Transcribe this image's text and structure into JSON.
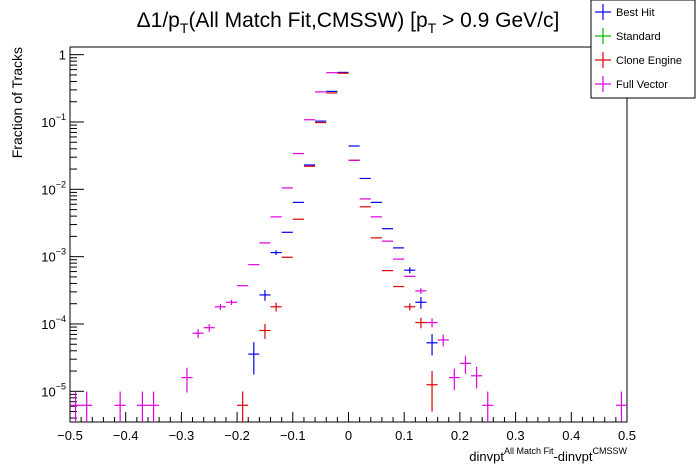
{
  "chart_data": {
    "type": "scatter",
    "title": "Δ1/p_T(All Match Fit,CMSSW) [p_T > 0.9 GeV/c]",
    "title_parts": {
      "a": "Δ1/p",
      "a_sub": "T",
      "b": "(All Match Fit,CMSSW) [p",
      "b_sub": "T",
      "c": " > 0.9 GeV/c]"
    },
    "xlabel": "dinvpt^{All Match Fit}-dinvpt^{CMSSW}",
    "xlabel_parts": {
      "a": "dinvpt",
      "a_sup": "All Match Fit",
      "b": "-dinvpt",
      "b_sup": "CMSSW"
    },
    "ylabel": "Fraction of Tracks",
    "xlim": [
      -0.5,
      0.5
    ],
    "ylim": [
      3.5e-06,
      1.3
    ],
    "yscale": "log",
    "grid": false,
    "legend_position": "top-right",
    "x_ticks": [
      -0.5,
      -0.4,
      -0.3,
      -0.2,
      -0.1,
      0,
      0.1,
      0.2,
      0.3,
      0.4,
      0.5
    ],
    "x_tick_labels": [
      "−0.5",
      "−0.4",
      "−0.3",
      "−0.2",
      "−0.1",
      "0",
      "0.1",
      "0.2",
      "0.3",
      "0.4",
      "0.5"
    ],
    "y_ticks": [
      1e-05,
      0.0001,
      0.001,
      0.01,
      0.1,
      1
    ],
    "y_tick_labels": [
      {
        "base": "10",
        "exp": "−5"
      },
      {
        "base": "10",
        "exp": "−4"
      },
      {
        "base": "10",
        "exp": "−3"
      },
      {
        "base": "10",
        "exp": "−2"
      },
      {
        "base": "10",
        "exp": "−1"
      },
      {
        "base": "1",
        "exp": ""
      }
    ],
    "bin_half_width": 0.01,
    "series": [
      {
        "name": "Best Hit",
        "color": "#0000ee",
        "points": [
          {
            "x": -0.17,
            "y": 3.57e-05,
            "err": 0.5
          },
          {
            "x": -0.15,
            "y": 0.00027,
            "err": 0.18
          },
          {
            "x": -0.13,
            "y": 0.00115,
            "err": 0.08
          },
          {
            "x": -0.11,
            "y": 0.0023
          },
          {
            "x": -0.09,
            "y": 0.0064
          },
          {
            "x": -0.07,
            "y": 0.023
          },
          {
            "x": -0.05,
            "y": 0.103
          },
          {
            "x": -0.03,
            "y": 0.285
          },
          {
            "x": -0.01,
            "y": 0.545
          },
          {
            "x": 0.01,
            "y": 0.044
          },
          {
            "x": 0.03,
            "y": 0.0145
          },
          {
            "x": 0.05,
            "y": 0.0064
          },
          {
            "x": 0.07,
            "y": 0.0026
          },
          {
            "x": 0.09,
            "y": 0.00135
          },
          {
            "x": 0.11,
            "y": 0.00063,
            "err": 0.1
          },
          {
            "x": 0.13,
            "y": 0.00021,
            "err": 0.2
          },
          {
            "x": 0.15,
            "y": 5.25e-05,
            "err": 0.35
          }
        ]
      },
      {
        "name": "Standard",
        "color": "#00bb00",
        "points": []
      },
      {
        "name": "Clone Engine",
        "color": "#dd0000",
        "points": [
          {
            "x": -0.19,
            "y": 6.2e-06,
            "err": 0.6
          },
          {
            "x": -0.15,
            "y": 8e-05,
            "err": 0.25
          },
          {
            "x": -0.13,
            "y": 0.00018,
            "err": 0.15
          },
          {
            "x": -0.11,
            "y": 0.00098
          },
          {
            "x": -0.09,
            "y": 0.0036
          },
          {
            "x": -0.07,
            "y": 0.022
          },
          {
            "x": -0.05,
            "y": 0.098
          },
          {
            "x": -0.03,
            "y": 0.27
          },
          {
            "x": -0.01,
            "y": 0.53
          },
          {
            "x": 0.01,
            "y": 0.027
          },
          {
            "x": 0.03,
            "y": 0.0055
          },
          {
            "x": 0.05,
            "y": 0.0019
          },
          {
            "x": 0.07,
            "y": 0.00062
          },
          {
            "x": 0.09,
            "y": 0.00036
          },
          {
            "x": 0.11,
            "y": 0.00018,
            "err": 0.12
          },
          {
            "x": 0.13,
            "y": 0.000105,
            "err": 0.18
          },
          {
            "x": 0.15,
            "y": 1.25e-05,
            "err": 0.6
          }
        ]
      },
      {
        "name": "Full Vector",
        "color": "#dd00dd",
        "points": [
          {
            "x": -0.49,
            "y": 6.2e-06,
            "err": 0.6
          },
          {
            "x": -0.47,
            "y": 6.2e-06,
            "err": 0.6
          },
          {
            "x": -0.41,
            "y": 6.2e-06,
            "err": 0.6
          },
          {
            "x": -0.37,
            "y": 6.2e-06,
            "err": 0.6
          },
          {
            "x": -0.35,
            "y": 6.2e-06,
            "err": 0.6
          },
          {
            "x": -0.29,
            "y": 1.6e-05,
            "err": 0.4
          },
          {
            "x": -0.27,
            "y": 7.3e-05,
            "err": 0.15
          },
          {
            "x": -0.25,
            "y": 8.8e-05,
            "err": 0.13
          },
          {
            "x": -0.23,
            "y": 0.00018,
            "err": 0.1
          },
          {
            "x": -0.21,
            "y": 0.00021,
            "err": 0.09
          },
          {
            "x": -0.19,
            "y": 0.00037
          },
          {
            "x": -0.17,
            "y": 0.00076
          },
          {
            "x": -0.15,
            "y": 0.0016
          },
          {
            "x": -0.13,
            "y": 0.0039
          },
          {
            "x": -0.11,
            "y": 0.0105
          },
          {
            "x": -0.09,
            "y": 0.034
          },
          {
            "x": -0.07,
            "y": 0.108
          },
          {
            "x": -0.05,
            "y": 0.28
          },
          {
            "x": -0.03,
            "y": 0.54
          },
          {
            "x": 0.01,
            "y": 0.027
          },
          {
            "x": 0.03,
            "y": 0.0072
          },
          {
            "x": 0.05,
            "y": 0.0039
          },
          {
            "x": 0.07,
            "y": 0.0017
          },
          {
            "x": 0.09,
            "y": 0.00092
          },
          {
            "x": 0.11,
            "y": 0.00051
          },
          {
            "x": 0.13,
            "y": 0.00031,
            "err": 0.1
          },
          {
            "x": 0.15,
            "y": 0.000105,
            "err": 0.15
          },
          {
            "x": 0.17,
            "y": 5.8e-05,
            "err": 0.2
          },
          {
            "x": 0.19,
            "y": 1.6e-05,
            "err": 0.35
          },
          {
            "x": 0.21,
            "y": 2.6e-05,
            "err": 0.3
          },
          {
            "x": 0.23,
            "y": 1.7e-05,
            "err": 0.35
          },
          {
            "x": 0.25,
            "y": 6.2e-06,
            "err": 0.6
          },
          {
            "x": 0.49,
            "y": 6.2e-06,
            "err": 0.6
          }
        ]
      }
    ]
  }
}
